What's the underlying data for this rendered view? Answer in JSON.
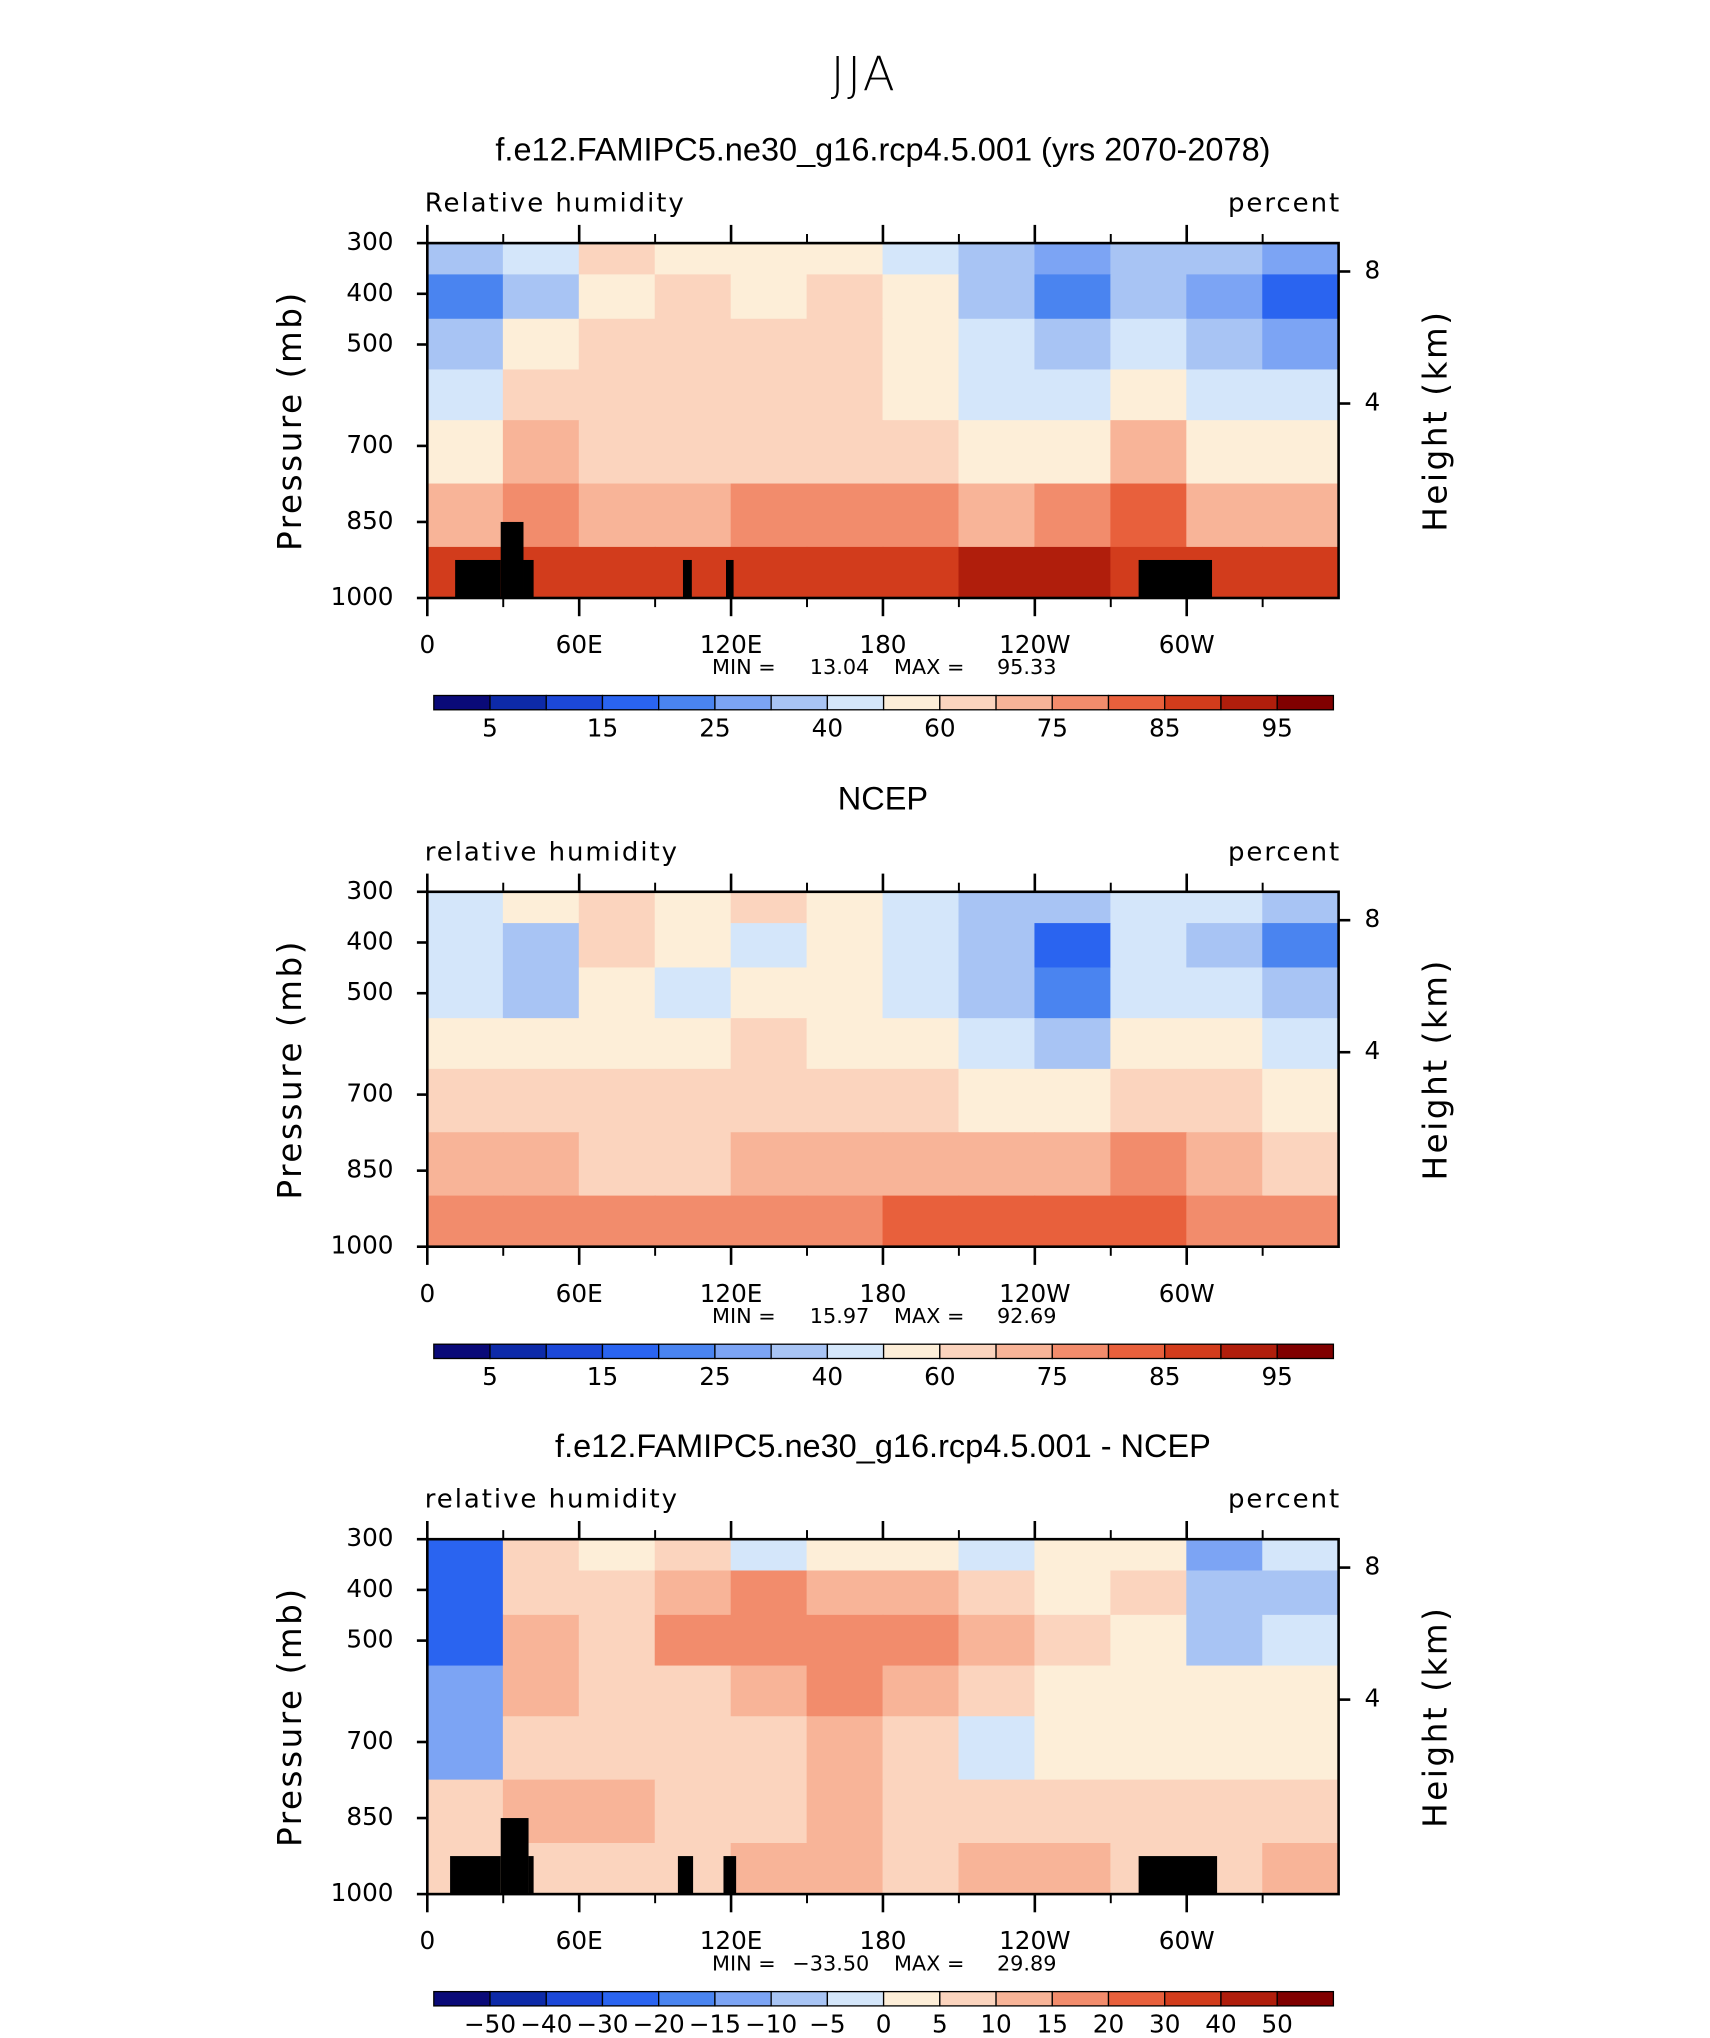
{
  "title": "JJA",
  "chart_data": [
    {
      "type": "contour",
      "title": "f.e12.FAMIPC5.ne30_g16.rcp4.5.001 (yrs 2070-2078)",
      "subtitle_left": "Relative humidity",
      "subtitle_right": "percent",
      "ylabel": "Pressure (mb)",
      "y2label": "Height (km)",
      "xlim": [
        0,
        360
      ],
      "xticks": [
        0,
        {
          "value": 60,
          "label": "60E"
        },
        {
          "value": 120,
          "label": "120E"
        },
        180,
        {
          "value": 240,
          "label": "120W"
        },
        {
          "value": 300,
          "label": "60W"
        }
      ],
      "xminor_ticks": [
        30,
        90,
        150,
        210,
        270,
        330
      ],
      "ylim": [
        1000,
        300
      ],
      "yticks": [
        300,
        400,
        500,
        700,
        850,
        1000
      ],
      "y2ticks": [
        4,
        8
      ],
      "x": [
        15,
        45,
        75,
        105,
        135,
        165,
        195,
        225,
        255,
        285,
        315,
        345
      ],
      "pressure": [
        325,
        400,
        500,
        600,
        700,
        850,
        950
      ],
      "values": [
        [
          35,
          45,
          62,
          58,
          55,
          55,
          45,
          30,
          25,
          35,
          30,
          25
        ],
        [
          20,
          35,
          58,
          60,
          58,
          62,
          50,
          35,
          20,
          35,
          25,
          15
        ],
        [
          35,
          50,
          60,
          62,
          65,
          68,
          55,
          40,
          30,
          45,
          35,
          25
        ],
        [
          45,
          62,
          60,
          60,
          60,
          68,
          55,
          45,
          40,
          55,
          45,
          40
        ],
        [
          55,
          72,
          60,
          60,
          62,
          62,
          60,
          55,
          55,
          70,
          55,
          50
        ],
        [
          72,
          78,
          70,
          72,
          75,
          75,
          75,
          72,
          75,
          80,
          72,
          70
        ],
        [
          88,
          85,
          88,
          85,
          88,
          88,
          88,
          90,
          90,
          88,
          88,
          88
        ]
      ],
      "topography": [
        {
          "x": [
            11,
            29
          ],
          "top": 925
        },
        {
          "x": [
            29,
            38
          ],
          "top": 850
        },
        {
          "x": [
            38,
            42
          ],
          "top": 925
        },
        {
          "x": [
            101,
            104.5
          ],
          "top": 925
        },
        {
          "x": [
            118,
            121
          ],
          "top": 925
        },
        {
          "x": [
            281,
            310
          ],
          "top": 925
        }
      ],
      "min_label": "MIN =",
      "min": 13.04,
      "max_label": "MAX =",
      "max": 95.33,
      "colorbar": {
        "levels": [
          5,
          10,
          15,
          20,
          25,
          30,
          40,
          50,
          60,
          70,
          75,
          80,
          85,
          90,
          95
        ],
        "label_every": 2,
        "colors": [
          "#0a0a78",
          "#0d2aa8",
          "#1c48d8",
          "#2a64f0",
          "#4a84f0",
          "#7ca4f4",
          "#a8c4f4",
          "#d4e6fa",
          "#fdeed8",
          "#fbd4be",
          "#f8b498",
          "#f28c6c",
          "#e8603c",
          "#d23c1c",
          "#b01e0c",
          "#800000"
        ]
      }
    },
    {
      "type": "contour",
      "title": "NCEP",
      "subtitle_left": "relative humidity",
      "subtitle_right": "percent",
      "ylabel": "Pressure (mb)",
      "y2label": "Height (km)",
      "xlim": [
        0,
        360
      ],
      "xticks": [
        0,
        {
          "value": 60,
          "label": "60E"
        },
        {
          "value": 120,
          "label": "120E"
        },
        180,
        {
          "value": 240,
          "label": "120W"
        },
        {
          "value": 300,
          "label": "60W"
        }
      ],
      "xminor_ticks": [
        30,
        90,
        150,
        210,
        270,
        330
      ],
      "ylim": [
        1000,
        300
      ],
      "yticks": [
        300,
        400,
        500,
        700,
        850,
        1000
      ],
      "y2ticks": [
        4,
        8
      ],
      "x": [
        15,
        45,
        75,
        105,
        135,
        165,
        195,
        225,
        255,
        285,
        315,
        345
      ],
      "pressure": [
        325,
        400,
        500,
        600,
        700,
        850,
        950
      ],
      "values": [
        [
          40,
          50,
          60,
          58,
          60,
          55,
          45,
          35,
          30,
          45,
          45,
          30
        ],
        [
          40,
          30,
          60,
          55,
          45,
          55,
          40,
          30,
          15,
          40,
          35,
          20
        ],
        [
          45,
          35,
          55,
          45,
          55,
          58,
          40,
          30,
          20,
          45,
          45,
          30
        ],
        [
          55,
          55,
          58,
          55,
          60,
          58,
          50,
          40,
          35,
          50,
          50,
          40
        ],
        [
          65,
          68,
          60,
          60,
          65,
          62,
          60,
          55,
          55,
          65,
          60,
          55
        ],
        [
          72,
          72,
          65,
          68,
          70,
          70,
          70,
          72,
          72,
          75,
          70,
          68
        ],
        [
          75,
          78,
          75,
          75,
          75,
          75,
          80,
          82,
          80,
          80,
          75,
          78
        ]
      ],
      "topography": [],
      "min_label": "MIN =",
      "min": 15.97,
      "max_label": "MAX =",
      "max": 92.69,
      "colorbar": {
        "levels": [
          5,
          10,
          15,
          20,
          25,
          30,
          40,
          50,
          60,
          70,
          75,
          80,
          85,
          90,
          95
        ],
        "label_every": 2,
        "colors": [
          "#0a0a78",
          "#0d2aa8",
          "#1c48d8",
          "#2a64f0",
          "#4a84f0",
          "#7ca4f4",
          "#a8c4f4",
          "#d4e6fa",
          "#fdeed8",
          "#fbd4be",
          "#f8b498",
          "#f28c6c",
          "#e8603c",
          "#d23c1c",
          "#b01e0c",
          "#800000"
        ]
      }
    },
    {
      "type": "contour",
      "title": "f.e12.FAMIPC5.ne30_g16.rcp4.5.001 - NCEP",
      "subtitle_left": "relative humidity",
      "subtitle_right": "percent",
      "ylabel": "Pressure (mb)",
      "y2label": "Height (km)",
      "xlim": [
        0,
        360
      ],
      "xticks": [
        0,
        {
          "value": 60,
          "label": "60E"
        },
        {
          "value": 120,
          "label": "120E"
        },
        180,
        {
          "value": 240,
          "label": "120W"
        },
        {
          "value": 300,
          "label": "60W"
        }
      ],
      "xminor_ticks": [
        30,
        90,
        150,
        210,
        270,
        330
      ],
      "ylim": [
        1000,
        300
      ],
      "yticks": [
        300,
        400,
        500,
        700,
        850,
        1000
      ],
      "y2ticks": [
        4,
        8
      ],
      "x": [
        15,
        45,
        75,
        105,
        135,
        165,
        195,
        225,
        255,
        285,
        315,
        345
      ],
      "pressure": [
        325,
        400,
        500,
        600,
        700,
        850,
        950
      ],
      "values": [
        [
          -25,
          5,
          2,
          5,
          -5,
          0,
          0,
          -3,
          3,
          2,
          -15,
          -5
        ],
        [
          -30,
          5,
          5,
          10,
          15,
          10,
          10,
          5,
          3,
          5,
          -10,
          -8
        ],
        [
          -25,
          10,
          8,
          17,
          18,
          18,
          15,
          10,
          5,
          2,
          -8,
          -5
        ],
        [
          -15,
          10,
          5,
          8,
          10,
          15,
          10,
          5,
          3,
          3,
          2,
          0
        ],
        [
          -15,
          5,
          5,
          5,
          5,
          12,
          5,
          -5,
          2,
          2,
          2,
          2
        ],
        [
          5,
          10,
          10,
          8,
          8,
          10,
          8,
          5,
          5,
          5,
          5,
          5
        ],
        [
          8,
          5,
          8,
          8,
          12,
          10,
          8,
          10,
          12,
          5,
          8,
          12
        ]
      ],
      "topography": [
        {
          "x": [
            9,
            29
          ],
          "top": 925
        },
        {
          "x": [
            29,
            40
          ],
          "top": 850
        },
        {
          "x": [
            40,
            42
          ],
          "top": 925
        },
        {
          "x": [
            99,
            105
          ],
          "top": 925
        },
        {
          "x": [
            117,
            122
          ],
          "top": 925
        },
        {
          "x": [
            281,
            312
          ],
          "top": 925
        }
      ],
      "min_label": "MIN =",
      "min": {
        "value": -33.5,
        "label": "−33.50"
      },
      "max_label": "MAX =",
      "max": 29.89,
      "colorbar": {
        "levels": [
          {
            "value": -50,
            "label": "−50"
          },
          {
            "value": -40,
            "label": "−40"
          },
          {
            "value": -30,
            "label": "−30"
          },
          {
            "value": -20,
            "label": "−20"
          },
          {
            "value": -15,
            "label": "−15"
          },
          {
            "value": -10,
            "label": "−10"
          },
          {
            "value": -5,
            "label": "−5"
          },
          0,
          5,
          10,
          15,
          20,
          30,
          40,
          50
        ],
        "label_every": 1,
        "colors": [
          "#0a0a78",
          "#0d2aa8",
          "#1c48d8",
          "#2a64f0",
          "#4a84f0",
          "#7ca4f4",
          "#a8c4f4",
          "#d4e6fa",
          "#fdeed8",
          "#fbd4be",
          "#f8b498",
          "#f28c6c",
          "#e8603c",
          "#d23c1c",
          "#b01e0c",
          "#800000"
        ]
      }
    }
  ]
}
